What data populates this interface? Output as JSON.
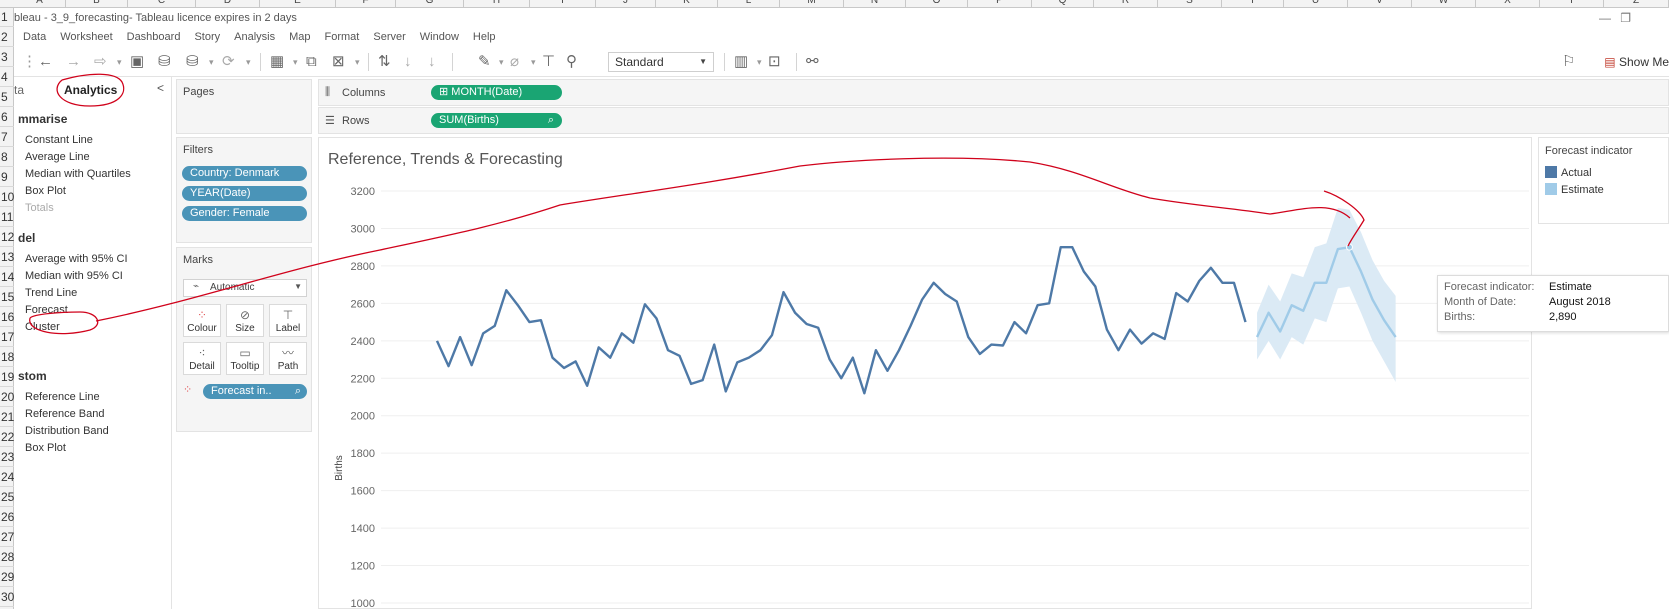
{
  "excel": {
    "columns": [
      "A",
      "B",
      "C",
      "D",
      "E",
      "F",
      "G",
      "H",
      "I",
      "J",
      "K",
      "L",
      "M",
      "N",
      "O",
      "P",
      "Q",
      "R",
      "S",
      "T",
      "U",
      "V",
      "W",
      "X",
      "Y",
      "Z"
    ],
    "rows": [
      "1",
      "2",
      "3",
      "4",
      "5",
      "6",
      "7",
      "8",
      "9",
      "10",
      "11",
      "12",
      "13",
      "14",
      "15",
      "16",
      "17",
      "18",
      "19",
      "20",
      "21",
      "22",
      "23",
      "24",
      "25",
      "26",
      "27",
      "28",
      "29",
      "30"
    ]
  },
  "window": {
    "title": "bleau - 3_9_forecasting- Tableau licence expires in 2 days",
    "minimize_glyph": "—",
    "restore_glyph": "❐"
  },
  "menu": [
    "Data",
    "Worksheet",
    "Dashboard",
    "Story",
    "Analysis",
    "Map",
    "Format",
    "Server",
    "Window",
    "Help"
  ],
  "toolbar": {
    "fit_mode": "Standard",
    "show_me_label": "Show Me"
  },
  "analytics_pane": {
    "data_tab": "ta",
    "analytics_tab": "Analytics",
    "collapse_glyph": "<",
    "sections": [
      {
        "title": "mmarise",
        "items": [
          {
            "label": "Constant Line",
            "disabled": false
          },
          {
            "label": "Average Line",
            "disabled": false
          },
          {
            "label": "Median with Quartiles",
            "disabled": false
          },
          {
            "label": "Box Plot",
            "disabled": false
          },
          {
            "label": "Totals",
            "disabled": true
          }
        ]
      },
      {
        "title": "del",
        "items": [
          {
            "label": "Average with 95% CI",
            "disabled": false
          },
          {
            "label": "Median with 95% CI",
            "disabled": false
          },
          {
            "label": "Trend Line",
            "disabled": false
          },
          {
            "label": "Forecast",
            "disabled": false
          },
          {
            "label": "Cluster",
            "disabled": false
          }
        ]
      },
      {
        "title": "stom",
        "items": [
          {
            "label": "Reference Line",
            "disabled": false
          },
          {
            "label": "Reference Band",
            "disabled": false
          },
          {
            "label": "Distribution Band",
            "disabled": false
          },
          {
            "label": "Box Plot",
            "disabled": false
          }
        ]
      }
    ]
  },
  "pages_card": {
    "title": "Pages"
  },
  "filters_card": {
    "title": "Filters",
    "pills": [
      "Country: Denmark",
      "YEAR(Date)",
      "Gender: Female"
    ]
  },
  "marks_card": {
    "title": "Marks",
    "mark_type": "Automatic",
    "buttons": [
      "Colour",
      "Size",
      "Label",
      "Detail",
      "Tooltip",
      "Path"
    ],
    "color_pill": "Forecast in..",
    "pill_icon": "⌕"
  },
  "shelves": {
    "columns_label": "Columns",
    "columns_pill": "MONTH(Date)",
    "rows_label": "Rows",
    "rows_pill": "SUM(Births)",
    "pill_icon": "⌕"
  },
  "colors": {
    "actual": "#4e79a7",
    "estimate": "#a0cbe8",
    "band": "#dbeaf5",
    "annotation": "#d0021b",
    "pill_green": "#1aa573",
    "pill_blue": "#4a94b8"
  },
  "chart_data": {
    "type": "line",
    "title": "Reference, Trends & Forecasting",
    "ylabel": "Births",
    "xlabel": "",
    "ylim": [
      1000,
      3200
    ],
    "yticks": [
      1000,
      1200,
      1400,
      1600,
      1800,
      2000,
      2200,
      2400,
      2600,
      2800,
      3000,
      3200
    ],
    "grid": true,
    "legend_title": "Forecast indicator",
    "legend_position": "right",
    "series": [
      {
        "name": "Actual",
        "values": [
          2400,
          2265,
          2420,
          2270,
          2440,
          2480,
          2670,
          2590,
          2500,
          2510,
          2310,
          2255,
          2290,
          2160,
          2365,
          2310,
          2440,
          2390,
          2595,
          2520,
          2350,
          2320,
          2170,
          2190,
          2380,
          2130,
          2285,
          2310,
          2350,
          2430,
          2660,
          2550,
          2490,
          2470,
          2300,
          2200,
          2310,
          2120,
          2350,
          2240,
          2350,
          2480,
          2620,
          2710,
          2650,
          2610,
          2420,
          2330,
          2380,
          2375,
          2500,
          2440,
          2590,
          2600,
          2900,
          2900,
          2770,
          2690,
          2460,
          2350,
          2460,
          2385,
          2440,
          2410,
          2655,
          2610,
          2720,
          2790,
          2710,
          2710,
          2500
        ]
      },
      {
        "name": "Estimate",
        "values": [
          2420,
          2550,
          2450,
          2590,
          2560,
          2710,
          2710,
          2890,
          2900,
          2770,
          2620,
          2510,
          2420
        ],
        "upper": [
          2550,
          2700,
          2610,
          2760,
          2740,
          2900,
          2920,
          3110,
          3100,
          2980,
          2830,
          2720,
          2640
        ],
        "lower": [
          2300,
          2400,
          2300,
          2420,
          2380,
          2520,
          2500,
          2680,
          2690,
          2550,
          2400,
          2290,
          2180
        ]
      }
    ]
  },
  "tooltip": {
    "rows": [
      {
        "key": "Forecast indicator:",
        "value": "Estimate"
      },
      {
        "key": "Month of Date:",
        "value": "August 2018"
      },
      {
        "key": "Births:",
        "value": "2,890"
      }
    ]
  }
}
